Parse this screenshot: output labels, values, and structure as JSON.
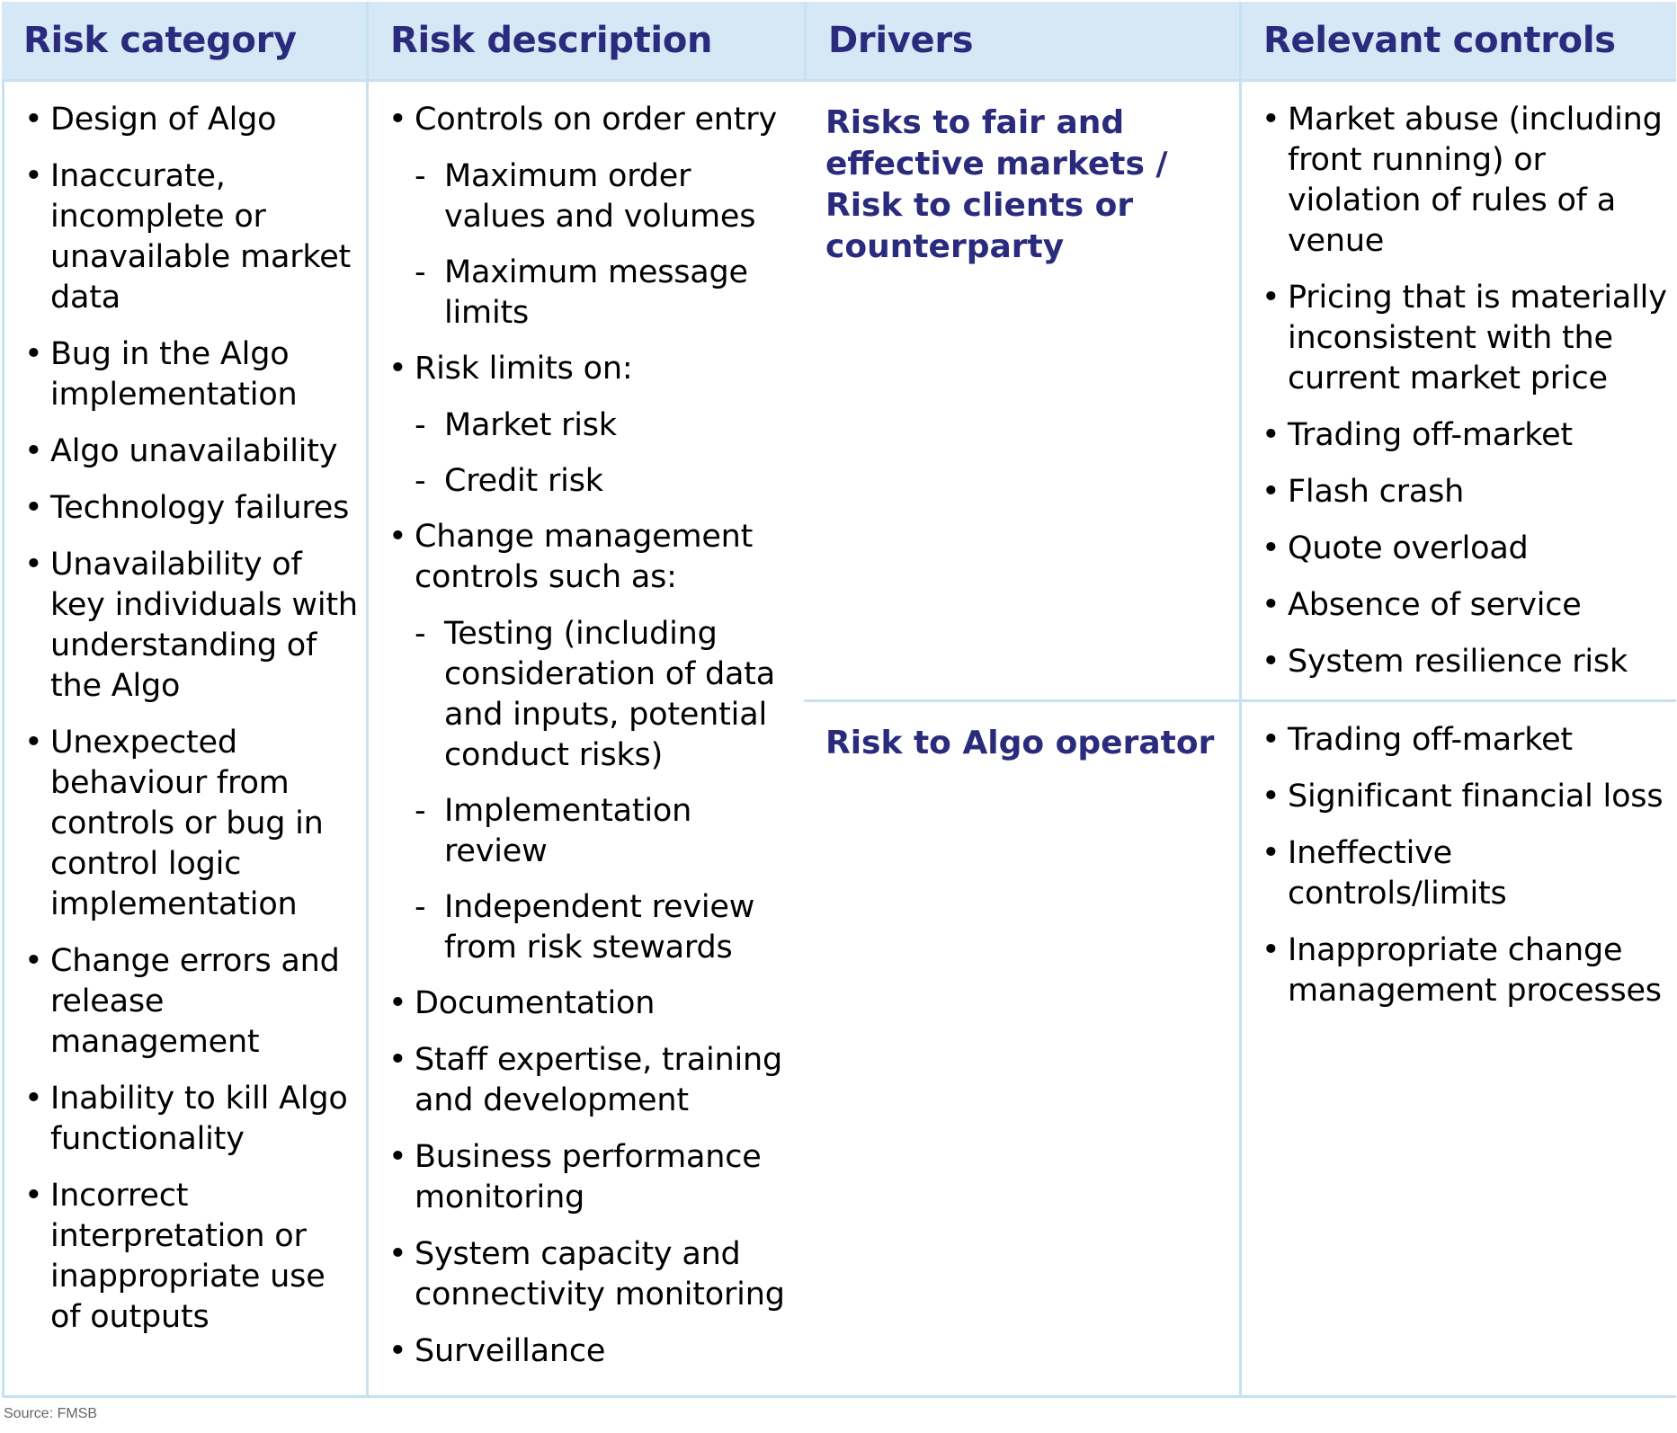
{
  "headers": [
    "Risk category",
    "Risk description",
    "Drivers",
    "Relevant controls"
  ],
  "categories": [
    "Risks to fair and effective markets / Risk to clients or counterparty",
    "Risk to Algo operator"
  ],
  "descriptions_1": [
    "Market abuse (including front running) or violation of rules of a venue",
    "Pricing that is materially inconsistent with the current market price",
    "Trading off-market",
    "Flash crash",
    "Quote overload",
    "Absence of service",
    "System resilience risk"
  ],
  "descriptions_2": [
    "Trading off-market",
    "Significant financial loss",
    "Ineffective controls/limits",
    "Inappropriate change management processes"
  ],
  "drivers": [
    "Design of Algo",
    "Inaccurate, incomplete or unavailable market data",
    "Bug in the Algo implementation",
    "Algo unavailability",
    "Technology failures",
    "Unavailability of key individuals with understanding of the Algo",
    "Unexpected behaviour from controls or bug in control logic implementation",
    "Change errors and release management",
    "Inability to kill Algo functionality",
    "Incorrect interpretation or inappropriate use of outputs"
  ],
  "controls": [
    "Controls on order entry",
    "Maximum order values and volumes",
    "Maximum message limits",
    "Risk limits on:",
    "Market risk",
    "Credit risk",
    "Change management controls such as:",
    "Testing (including consideration of data and inputs, potential conduct risks)",
    "Implementation review",
    "Independent review from risk stewards",
    "Documentation",
    "Staff expertise, training and development",
    "Business performance monitoring",
    "System capacity and connectivity monitoring",
    "Surveillance"
  ],
  "markers": {
    "bullet": "•",
    "dash": "-"
  },
  "source": "Source: FMSB",
  "colors": {
    "header_bg": "#d6e8f5",
    "border": "#c6e1f2",
    "heading_text": "#2b2b7e"
  }
}
